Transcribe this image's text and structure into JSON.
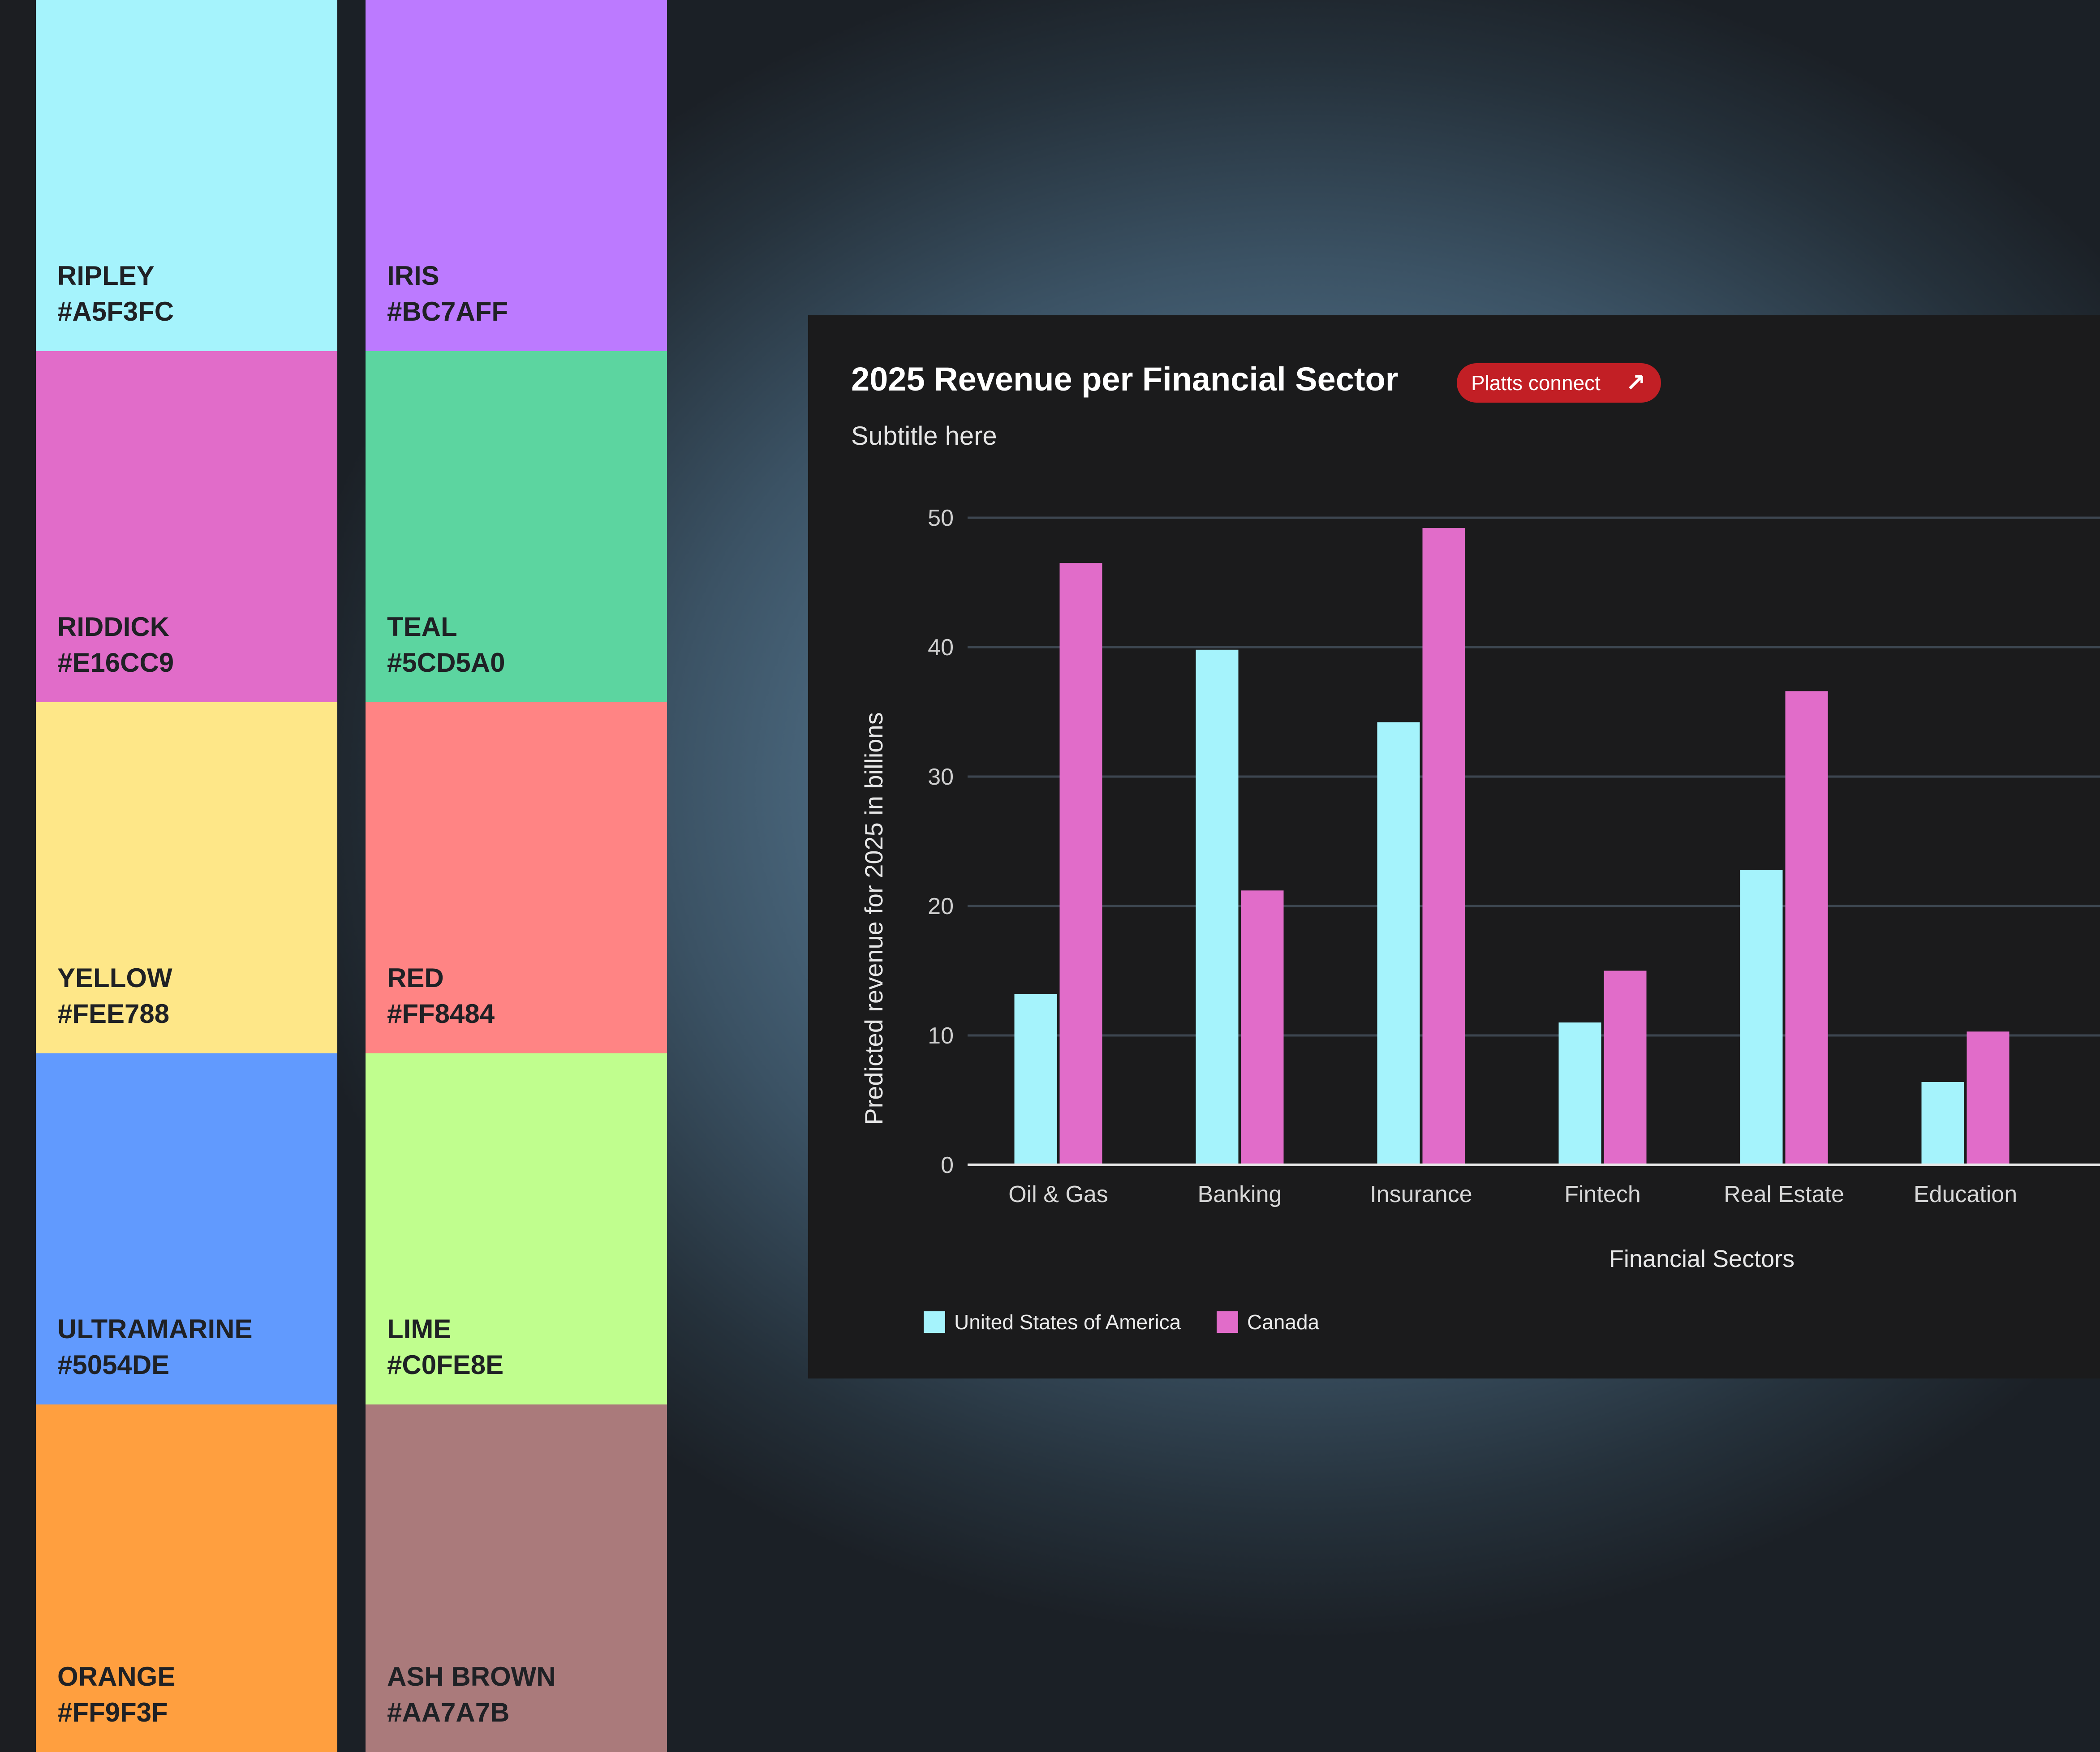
{
  "palette": {
    "left": [
      {
        "name": "RIPLEY",
        "hex": "#A5F3FC",
        "color": "#A5F3FC"
      },
      {
        "name": "RIDDICK",
        "hex": "#E16CC9",
        "color": "#E16CC9"
      },
      {
        "name": "YELLOW",
        "hex": "#FEE788",
        "color": "#FEE788"
      },
      {
        "name": "ULTRAMARINE",
        "hex": "#5054DE",
        "color": "#619AFE"
      },
      {
        "name": "ORANGE",
        "hex": "#FF9F3F",
        "color": "#FF9F3F"
      }
    ],
    "right": [
      {
        "name": "IRIS",
        "hex": "#BC7AFF",
        "color": "#BC7AFF"
      },
      {
        "name": "TEAL",
        "hex": "#5CD5A0",
        "color": "#5CD5A0"
      },
      {
        "name": "RED",
        "hex": "#FF8484",
        "color": "#FF8484"
      },
      {
        "name": "LIME",
        "hex": "#C0FE8E",
        "color": "#C0FE8E"
      },
      {
        "name": "ASH BROWN",
        "hex": "#AA7A7B",
        "color": "#AA7A7B"
      }
    ]
  },
  "card": {
    "title": "2025 Revenue per Financial Sector",
    "badge_label": "Platts connect",
    "badge_icon": "↗",
    "subtitle": "Subtitle here"
  },
  "chart_data": {
    "type": "bar",
    "title": "2025 Revenue per Financial Sector",
    "subtitle": "Subtitle here",
    "xlabel": "Financial Sectors",
    "ylabel": "Predicted revenue for 2025 in billions",
    "ylim": [
      0,
      50
    ],
    "yticks": [
      0,
      10,
      20,
      30,
      40,
      50
    ],
    "grid": true,
    "categories": [
      "Oil & Gas",
      "Banking",
      "Insurance",
      "Fintech",
      "Real Estate",
      "Education"
    ],
    "series": [
      {
        "name": "United States of America",
        "color": "#A5F3FC",
        "values": [
          13.2,
          39.8,
          34.2,
          11.0,
          22.8,
          6.4
        ]
      },
      {
        "name": "Canada",
        "color": "#E16CC9",
        "values": [
          46.5,
          21.2,
          49.2,
          15.0,
          36.6,
          10.3
        ]
      }
    ],
    "legend_position": "bottom-left"
  }
}
